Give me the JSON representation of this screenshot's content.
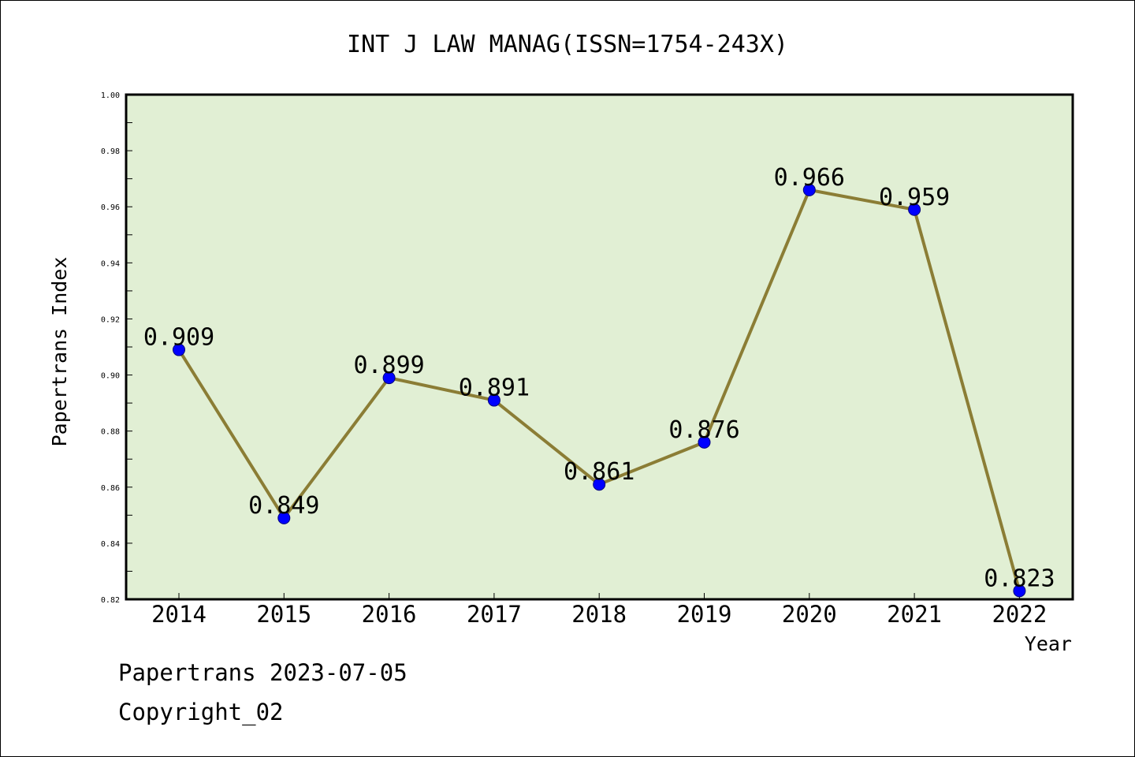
{
  "chart_data": {
    "type": "line",
    "title": "INT J LAW MANAG(ISSN=1754-243X)",
    "xlabel": "Year",
    "ylabel": "Papertrans Index",
    "categories": [
      "2014",
      "2015",
      "2016",
      "2017",
      "2018",
      "2019",
      "2020",
      "2021",
      "2022"
    ],
    "series": [
      {
        "values": [
          0.909,
          0.849,
          0.899,
          0.891,
          0.861,
          0.876,
          0.966,
          0.959,
          0.823
        ],
        "data_labels": [
          "0.909",
          "0.849",
          "0.899",
          "0.891",
          "0.861",
          "0.876",
          "0.966",
          "0.959",
          "0.823"
        ]
      }
    ],
    "ylim": [
      0.82,
      1.0
    ],
    "y_ticks": [
      "0.82",
      "0.84",
      "0.86",
      "0.88",
      "0.90",
      "0.92",
      "0.94",
      "0.96",
      "0.98",
      "1.00"
    ],
    "grid": false,
    "colors": {
      "plot_background": "#e1efd4",
      "line": "#8b7d35",
      "marker": "#0000ff",
      "axis": "#000000"
    }
  },
  "footer": {
    "source": "Papertrans 2023-07-05",
    "copyright": "Copyright_02"
  }
}
